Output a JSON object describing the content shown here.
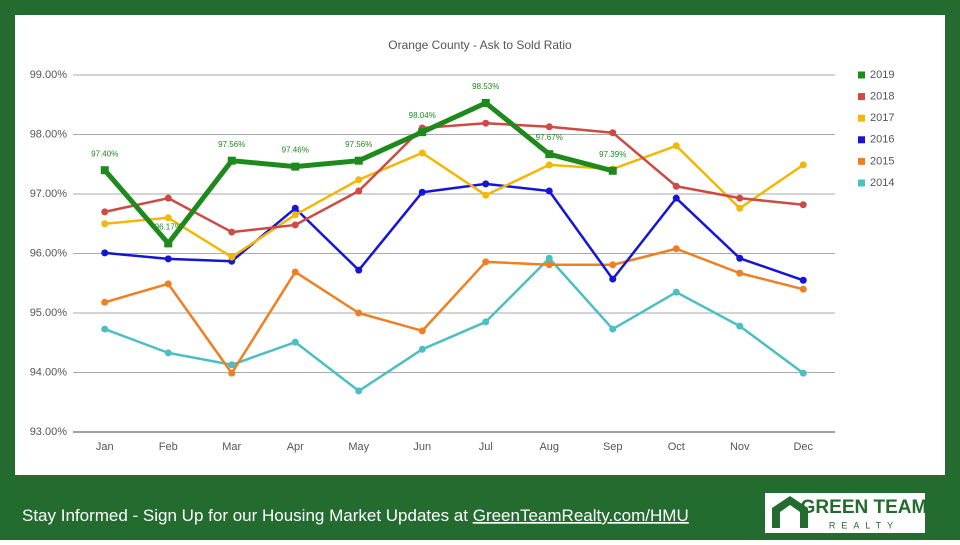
{
  "chart_data": {
    "type": "line",
    "title": "Orange County - Ask to Sold Ratio",
    "categories": [
      "Jan",
      "Feb",
      "Mar",
      "Apr",
      "May",
      "Jun",
      "Jul",
      "Aug",
      "Sep",
      "Oct",
      "Nov",
      "Dec"
    ],
    "ylim": [
      93,
      99
    ],
    "yticks": [
      {
        "value": 93,
        "label": "93.00%"
      },
      {
        "value": 94,
        "label": "94.00%"
      },
      {
        "value": 95,
        "label": "95.00%"
      },
      {
        "value": 96,
        "label": "96.00%"
      },
      {
        "value": 97,
        "label": "97.00%"
      },
      {
        "value": 98,
        "label": "98.00%"
      },
      {
        "value": 99,
        "label": "99.00%"
      }
    ],
    "grid": true,
    "legend": "right",
    "series": [
      {
        "name": "2019",
        "color": "#1e8a1e",
        "values": [
          97.4,
          96.17,
          97.56,
          97.46,
          97.56,
          98.04,
          98.53,
          97.67,
          97.39,
          null,
          null,
          null
        ],
        "value_labels": [
          "97.40%",
          "96.17%",
          "97.56%",
          "97.46%",
          "97.56%",
          "98.04%",
          "98.53%",
          "97.67%",
          "97.39%",
          null,
          null,
          null
        ]
      },
      {
        "name": "2018",
        "color": "#cc4b45",
        "values": [
          96.7,
          96.93,
          96.36,
          96.48,
          97.05,
          98.11,
          98.19,
          98.13,
          98.03,
          97.13,
          96.93,
          96.82
        ]
      },
      {
        "name": "2017",
        "color": "#f2b807",
        "values": [
          96.5,
          96.6,
          95.94,
          96.65,
          97.24,
          97.69,
          96.98,
          97.49,
          97.42,
          97.81,
          96.76,
          97.49
        ]
      },
      {
        "name": "2016",
        "color": "#1515d6",
        "values": [
          96.01,
          95.91,
          95.87,
          96.76,
          95.72,
          97.03,
          97.17,
          97.05,
          95.57,
          96.93,
          95.92,
          95.55
        ]
      },
      {
        "name": "2015",
        "color": "#f07f22",
        "values": [
          95.18,
          95.49,
          93.99,
          95.69,
          95.0,
          94.7,
          95.86,
          95.81,
          95.81,
          96.08,
          95.67,
          95.4
        ]
      },
      {
        "name": "2014",
        "color": "#4cbfc4",
        "values": [
          94.73,
          94.33,
          94.13,
          94.51,
          93.69,
          94.39,
          94.85,
          95.92,
          94.73,
          95.35,
          94.78,
          93.99
        ]
      }
    ]
  },
  "footer": {
    "text": "Stay Informed - Sign Up for our Housing Market Updates at ",
    "link": "GreenTeamRealty.com/HMU",
    "logo_top": "GREEN TEAM",
    "logo_bottom": "REALTY"
  }
}
